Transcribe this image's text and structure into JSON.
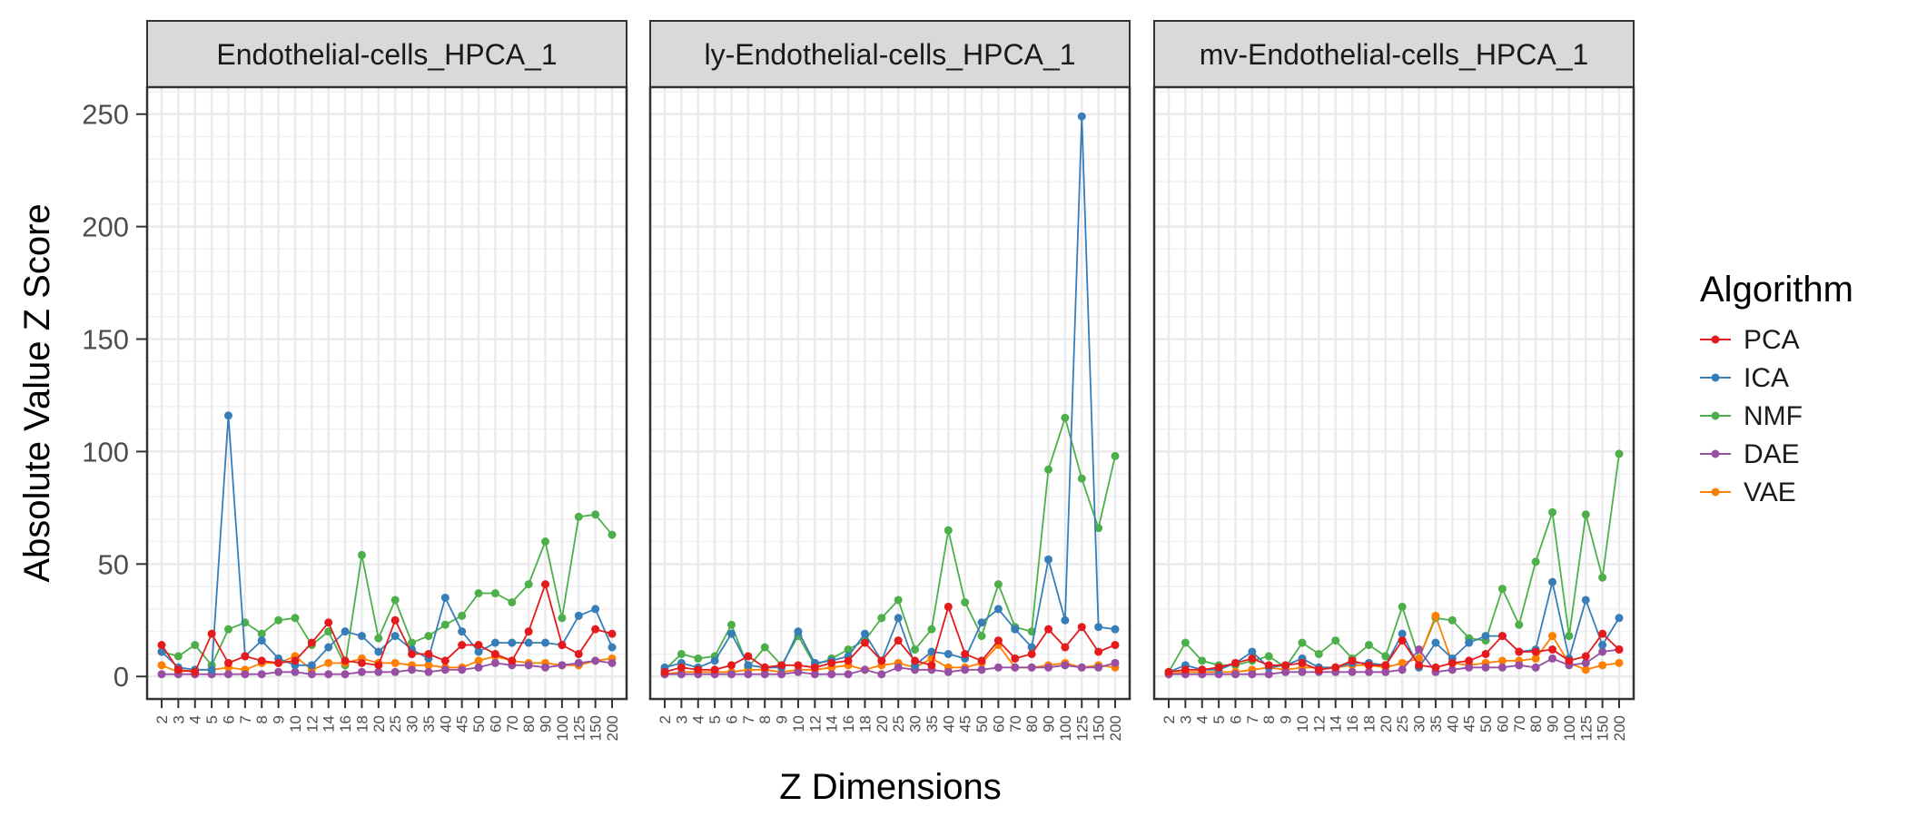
{
  "chart_data": {
    "type": "line",
    "ylabel": "Absolute Value Z Score",
    "xlabel": "Z Dimensions",
    "ylim": [
      -10,
      262
    ],
    "yticks": [
      0,
      50,
      100,
      150,
      200,
      250
    ],
    "grid": true,
    "legend_position": "right",
    "legend_title": "Algorithm",
    "categories": [
      "2",
      "3",
      "4",
      "5",
      "6",
      "7",
      "8",
      "9",
      "10",
      "12",
      "14",
      "16",
      "18",
      "20",
      "25",
      "30",
      "35",
      "40",
      "45",
      "50",
      "60",
      "70",
      "80",
      "90",
      "100",
      "125",
      "150",
      "200"
    ],
    "series_colors": {
      "PCA": "#e41a1c",
      "ICA": "#377eb8",
      "NMF": "#4daf4a",
      "DAE": "#984ea3",
      "VAE": "#ff7f00"
    },
    "panels": [
      {
        "title": "Endothelial-cells_HPCA_1",
        "series": [
          {
            "name": "PCA",
            "values": [
              14,
              3,
              2,
              19,
              6,
              9,
              7,
              6,
              7,
              15,
              24,
              7,
              6,
              5,
              25,
              10,
              10,
              7,
              14,
              14,
              10,
              7,
              20,
              41,
              14,
              10,
              21,
              19
            ]
          },
          {
            "name": "ICA",
            "values": [
              11,
              4,
              3,
              3,
              116,
              9,
              16,
              8,
              5,
              5,
              13,
              20,
              18,
              11,
              18,
              12,
              8,
              35,
              20,
              11,
              15,
              15,
              15,
              15,
              14,
              27,
              30,
              13
            ]
          },
          {
            "name": "NMF",
            "values": [
              11,
              9,
              14,
              5,
              21,
              24,
              19,
              25,
              26,
              14,
              20,
              5,
              54,
              17,
              34,
              15,
              18,
              23,
              27,
              37,
              37,
              33,
              41,
              60,
              26,
              71,
              72,
              63
            ]
          },
          {
            "name": "DAE",
            "values": [
              1,
              1,
              1,
              1,
              1,
              1,
              1,
              2,
              2,
              1,
              1,
              1,
              2,
              2,
              2,
              3,
              2,
              3,
              3,
              4,
              6,
              5,
              5,
              4,
              5,
              6,
              7,
              6
            ]
          },
          {
            "name": "VAE",
            "values": [
              5,
              2,
              3,
              3,
              4,
              3,
              6,
              6,
              9,
              3,
              6,
              6,
              8,
              6,
              6,
              5,
              5,
              4,
              4,
              7,
              9,
              7,
              6,
              6,
              5,
              5,
              7,
              8
            ]
          }
        ]
      },
      {
        "title": "ly-Endothelial-cells_HPCA_1",
        "series": [
          {
            "name": "PCA",
            "values": [
              2,
              4,
              3,
              3,
              5,
              9,
              4,
              5,
              5,
              4,
              6,
              7,
              15,
              7,
              16,
              7,
              5,
              31,
              10,
              7,
              16,
              8,
              10,
              21,
              13,
              22,
              11,
              14
            ]
          },
          {
            "name": "ICA",
            "values": [
              4,
              6,
              4,
              7,
              19,
              5,
              4,
              4,
              20,
              6,
              7,
              9,
              19,
              7,
              26,
              5,
              11,
              10,
              8,
              24,
              30,
              21,
              13,
              52,
              25,
              249,
              22,
              21
            ]
          },
          {
            "name": "NMF",
            "values": [
              3,
              10,
              8,
              9,
              23,
              4,
              13,
              5,
              18,
              5,
              8,
              12,
              16,
              26,
              34,
              12,
              21,
              65,
              33,
              18,
              41,
              22,
              20,
              92,
              115,
              88,
              66,
              98
            ]
          },
          {
            "name": "DAE",
            "values": [
              1,
              1,
              1,
              1,
              1,
              1,
              1,
              1,
              2,
              1,
              1,
              1,
              3,
              1,
              4,
              3,
              3,
              2,
              3,
              3,
              4,
              4,
              4,
              4,
              5,
              4,
              4,
              6
            ]
          },
          {
            "name": "VAE",
            "values": [
              1,
              2,
              2,
              2,
              2,
              3,
              3,
              2,
              3,
              3,
              4,
              5,
              3,
              5,
              6,
              4,
              8,
              4,
              4,
              6,
              14,
              4,
              4,
              5,
              6,
              4,
              5,
              4
            ]
          }
        ]
      },
      {
        "title": "mv-Endothelial-cells_HPCA_1",
        "series": [
          {
            "name": "PCA",
            "values": [
              2,
              3,
              3,
              4,
              6,
              8,
              5,
              5,
              6,
              3,
              4,
              7,
              5,
              5,
              16,
              5,
              4,
              6,
              7,
              10,
              18,
              11,
              11,
              12,
              7,
              9,
              19,
              12
            ]
          },
          {
            "name": "ICA",
            "values": [
              2,
              5,
              3,
              3,
              6,
              11,
              4,
              5,
              8,
              4,
              4,
              6,
              6,
              5,
              19,
              4,
              15,
              8,
              15,
              18,
              18,
              11,
              12,
              42,
              8,
              34,
              14,
              26
            ]
          },
          {
            "name": "NMF",
            "values": [
              2,
              15,
              7,
              5,
              5,
              7,
              9,
              4,
              15,
              10,
              16,
              8,
              14,
              9,
              31,
              8,
              26,
              25,
              17,
              16,
              39,
              23,
              51,
              73,
              18,
              72,
              44,
              99
            ]
          },
          {
            "name": "DAE",
            "values": [
              1,
              1,
              1,
              1,
              1,
              1,
              1,
              2,
              2,
              2,
              2,
              2,
              2,
              2,
              3,
              12,
              2,
              3,
              4,
              4,
              4,
              5,
              4,
              8,
              5,
              6,
              11,
              12
            ]
          },
          {
            "name": "VAE",
            "values": [
              1,
              2,
              2,
              2,
              2,
              3,
              4,
              3,
              4,
              4,
              4,
              5,
              5,
              4,
              6,
              8,
              27,
              6,
              5,
              6,
              7,
              7,
              8,
              18,
              6,
              3,
              5,
              6
            ]
          }
        ]
      }
    ]
  }
}
